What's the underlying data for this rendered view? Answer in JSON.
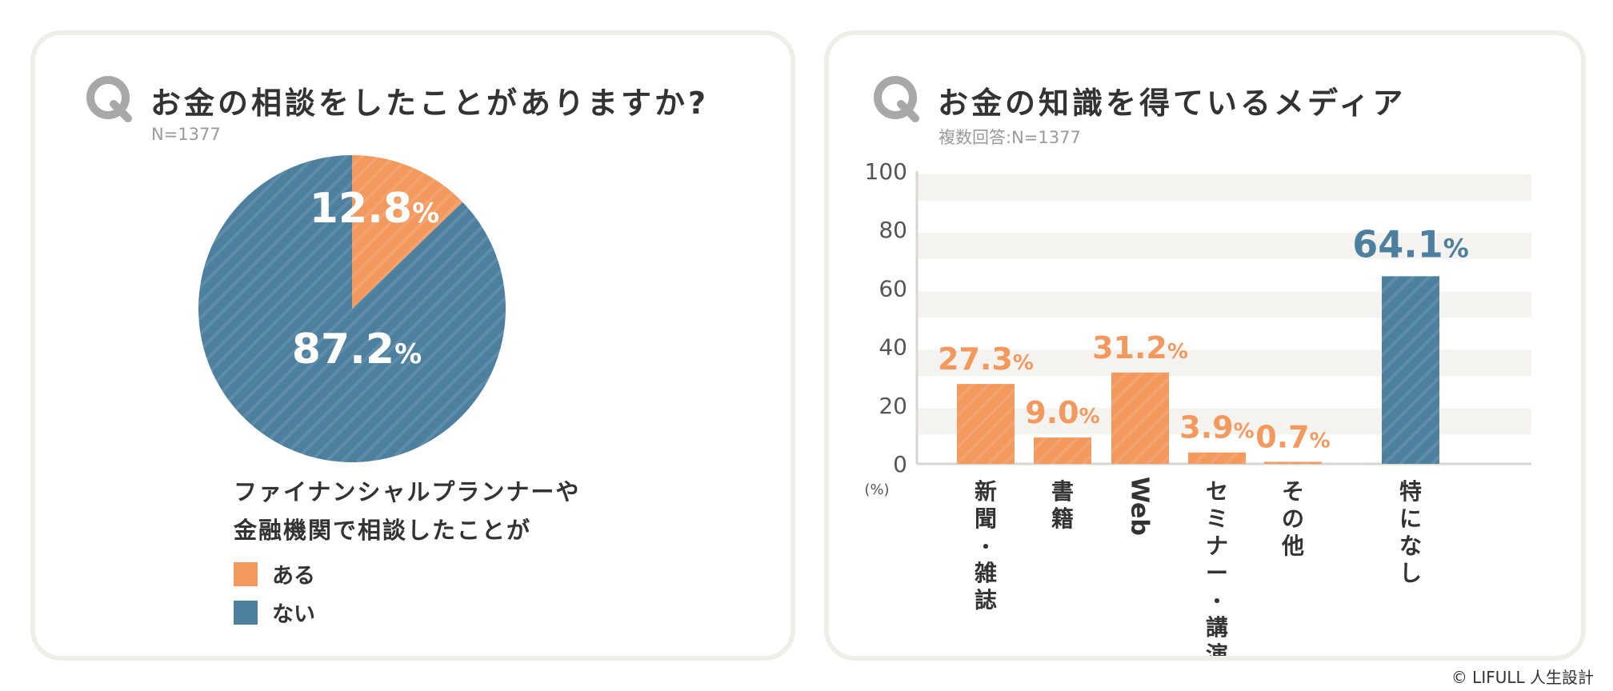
{
  "colors": {
    "orange": "#f3995e",
    "blue": "#4d7f9f",
    "band": "#f4f3ef",
    "q_icon": "#a8a8a8"
  },
  "left": {
    "title": "お金の相談をしたことがありますか?",
    "subtitle": "N=1377",
    "legend_title_line1": "ファイナンシャルプランナーや",
    "legend_title_line2": "金融機関で相談したことが",
    "legend": [
      {
        "label": "ある",
        "color": "#f3995e"
      },
      {
        "label": "ない",
        "color": "#4d7f9f"
      }
    ]
  },
  "right": {
    "title": "お金の知識を得ているメディア",
    "subtitle": "複数回答:N=1377"
  },
  "copyright": "© LIFULL 人生設計",
  "chart_data": [
    {
      "type": "pie",
      "title": "お金の相談をしたことがありますか?",
      "categories": [
        "ある",
        "ない"
      ],
      "values": [
        12.8,
        87.2
      ],
      "labels": [
        "12.8%",
        "87.2%"
      ],
      "colors": [
        "#f3995e",
        "#4d7f9f"
      ]
    },
    {
      "type": "bar",
      "title": "お金の知識を得ているメディア",
      "categories": [
        "新聞・雑誌",
        "書籍",
        "Web",
        "セミナー・講演",
        "その他",
        "特になし"
      ],
      "values": [
        27.3,
        9.0,
        31.2,
        3.9,
        0.7,
        64.1
      ],
      "labels": [
        "27.3%",
        "9.0%",
        "31.2%",
        "3.9%",
        "0.7%",
        "64.1%"
      ],
      "colors": [
        "#f3995e",
        "#f3995e",
        "#f3995e",
        "#f3995e",
        "#f3995e",
        "#4d7f9f"
      ],
      "ylim": [
        0,
        100
      ],
      "yticks": [
        0,
        20,
        40,
        60,
        80,
        100
      ],
      "yunit": "(%)"
    }
  ]
}
